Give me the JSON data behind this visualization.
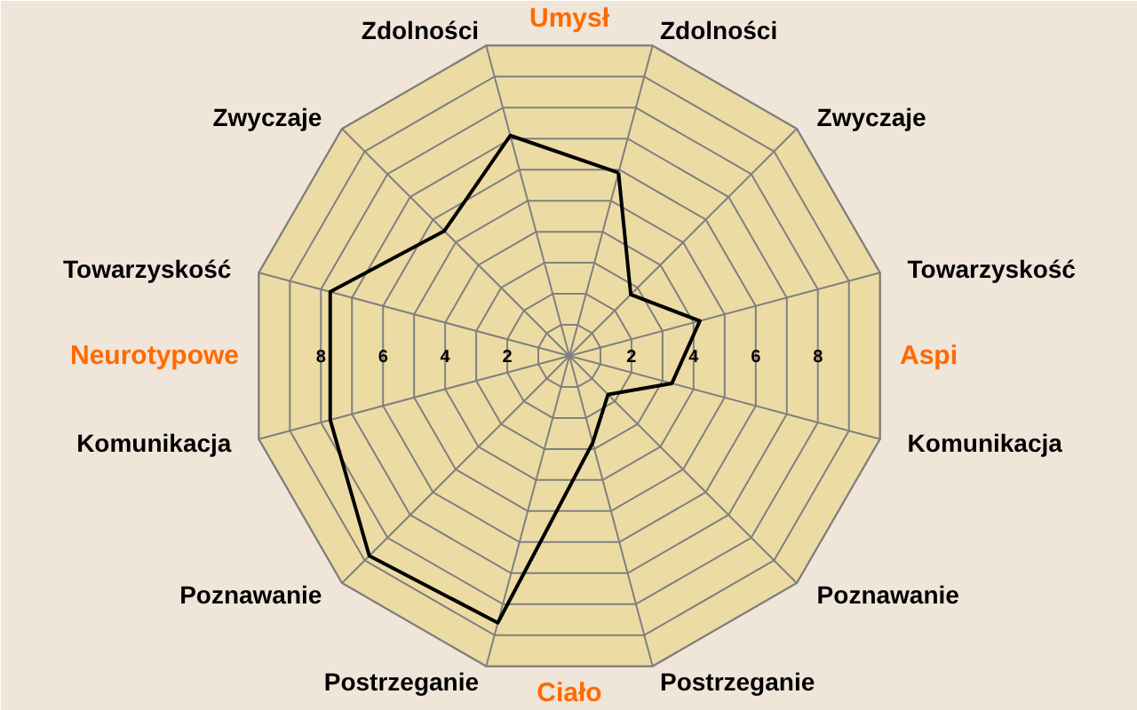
{
  "chart_data": {
    "type": "radar",
    "categories": [
      "Zdolności",
      "Zwyczaje",
      "Towarzyskość",
      "Komunikacja",
      "Poznawanie",
      "Postrzeganie",
      "Postrzeganie",
      "Poznawanie",
      "Komunikacja",
      "Towarzyskość",
      "Zwyczaje",
      "Zdolności"
    ],
    "series": [
      {
        "color": "#000000",
        "values": [
          5.9,
          2.7,
          4.2,
          3.3,
          1.7,
          2.8,
          8.6,
          8.8,
          7.7,
          7.7,
          5.5,
          7.1
        ]
      }
    ],
    "ylim": [
      0,
      10
    ],
    "yticks": [
      2,
      4,
      6,
      8
    ],
    "annotations": [
      "Umysł",
      "Aspi",
      "Ciało",
      "Neurotypowe",
      "2",
      "4",
      "6",
      "8"
    ],
    "grid": true,
    "marker": "none",
    "line_style": "solid"
  }
}
